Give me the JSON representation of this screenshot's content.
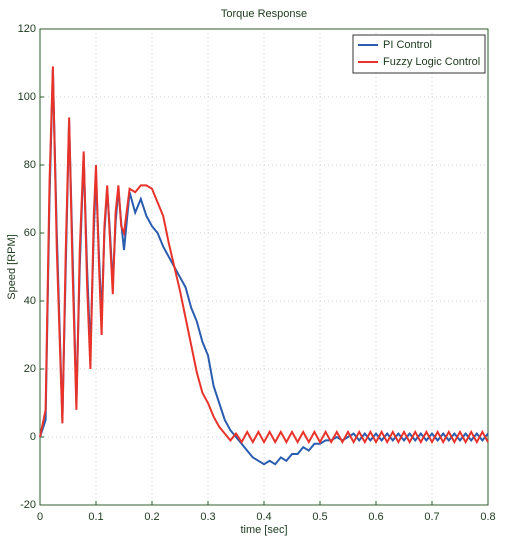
{
  "chart_data": {
    "type": "line",
    "title": "Torque Response",
    "x_label": "time [sec]",
    "y_label": "Speed [RPM]",
    "x": [
      0,
      0.01,
      0.017,
      0.023,
      0.03,
      0.04,
      0.046,
      0.052,
      0.058,
      0.065,
      0.071,
      0.078,
      0.084,
      0.09,
      0.096,
      0.1,
      0.105,
      0.11,
      0.115,
      0.12,
      0.125,
      0.13,
      0.135,
      0.14,
      0.145,
      0.15,
      0.16,
      0.17,
      0.18,
      0.19,
      0.2,
      0.21,
      0.22,
      0.23,
      0.24,
      0.25,
      0.26,
      0.27,
      0.28,
      0.29,
      0.3,
      0.31,
      0.32,
      0.33,
      0.34,
      0.35,
      0.36,
      0.37,
      0.38,
      0.39,
      0.4,
      0.41,
      0.42,
      0.43,
      0.44,
      0.45,
      0.46,
      0.47,
      0.48,
      0.49,
      0.5,
      0.51,
      0.52,
      0.53,
      0.54,
      0.55,
      0.56,
      0.57,
      0.58,
      0.59,
      0.6,
      0.61,
      0.62,
      0.63,
      0.64,
      0.65,
      0.66,
      0.67,
      0.68,
      0.69,
      0.7,
      0.71,
      0.72,
      0.73,
      0.74,
      0.75,
      0.76,
      0.77,
      0.78,
      0.79,
      0.8
    ],
    "series": [
      {
        "name": "PI Control",
        "color": "#2a5db0",
        "values": [
          0,
          5,
          70,
          108,
          60,
          5,
          50,
          93,
          55,
          10,
          50,
          83,
          50,
          25,
          60,
          77,
          55,
          35,
          60,
          73,
          60,
          45,
          63,
          73,
          63,
          55,
          72,
          66,
          70,
          65,
          62,
          60,
          56,
          53,
          50,
          47,
          44,
          38,
          34,
          28,
          24,
          15,
          10,
          5,
          2,
          0,
          -2,
          -4,
          -6,
          -7,
          -8,
          -7,
          -8,
          -6,
          -7,
          -5,
          -5,
          -3,
          -4,
          -2,
          -2,
          -1,
          -1,
          0,
          -1,
          0,
          1,
          -1,
          1,
          -1,
          1,
          -1,
          1,
          -1,
          1,
          -1,
          1,
          -1,
          1,
          -1,
          1,
          -1,
          1,
          -1,
          1,
          -1,
          1,
          -1,
          1,
          -1,
          1
        ]
      },
      {
        "name": "Fuzzy Logic Control",
        "color": "#e8332a",
        "values": [
          0,
          8,
          75,
          109,
          55,
          4,
          55,
          94,
          50,
          8,
          55,
          84,
          45,
          20,
          65,
          80,
          52,
          30,
          62,
          74,
          58,
          42,
          66,
          74,
          62,
          60,
          73,
          72,
          74,
          74,
          73,
          69,
          65,
          57,
          50,
          43,
          35,
          27,
          19,
          13,
          10,
          6,
          3,
          1,
          -1,
          1,
          -1.5,
          1.5,
          -1.5,
          1.5,
          -1.5,
          1.5,
          -1.5,
          1.5,
          -1.5,
          1.5,
          -1.5,
          1.5,
          -1.5,
          1.5,
          -1.5,
          1.5,
          -1.5,
          1.5,
          -1.5,
          1.5,
          -1.5,
          1.5,
          -1.5,
          1.5,
          -1.5,
          1.5,
          -1.5,
          1.5,
          -1.5,
          1.5,
          -1.5,
          1.5,
          -1.5,
          1.5,
          -1.5,
          1.5,
          -1.5,
          1.5,
          -1.5,
          1.5,
          -1.5,
          1.5,
          -1.5,
          1.5,
          -1.5
        ]
      }
    ],
    "xlim": [
      0,
      0.8
    ],
    "xticks": [
      0,
      0.1,
      0.2,
      0.3,
      0.4,
      0.5,
      0.6,
      0.7,
      0.8
    ],
    "ylim": [
      -20,
      120
    ],
    "yticks": [
      -20,
      0,
      20,
      40,
      60,
      80,
      100,
      120
    ],
    "grid": true,
    "legend": "upper right"
  }
}
